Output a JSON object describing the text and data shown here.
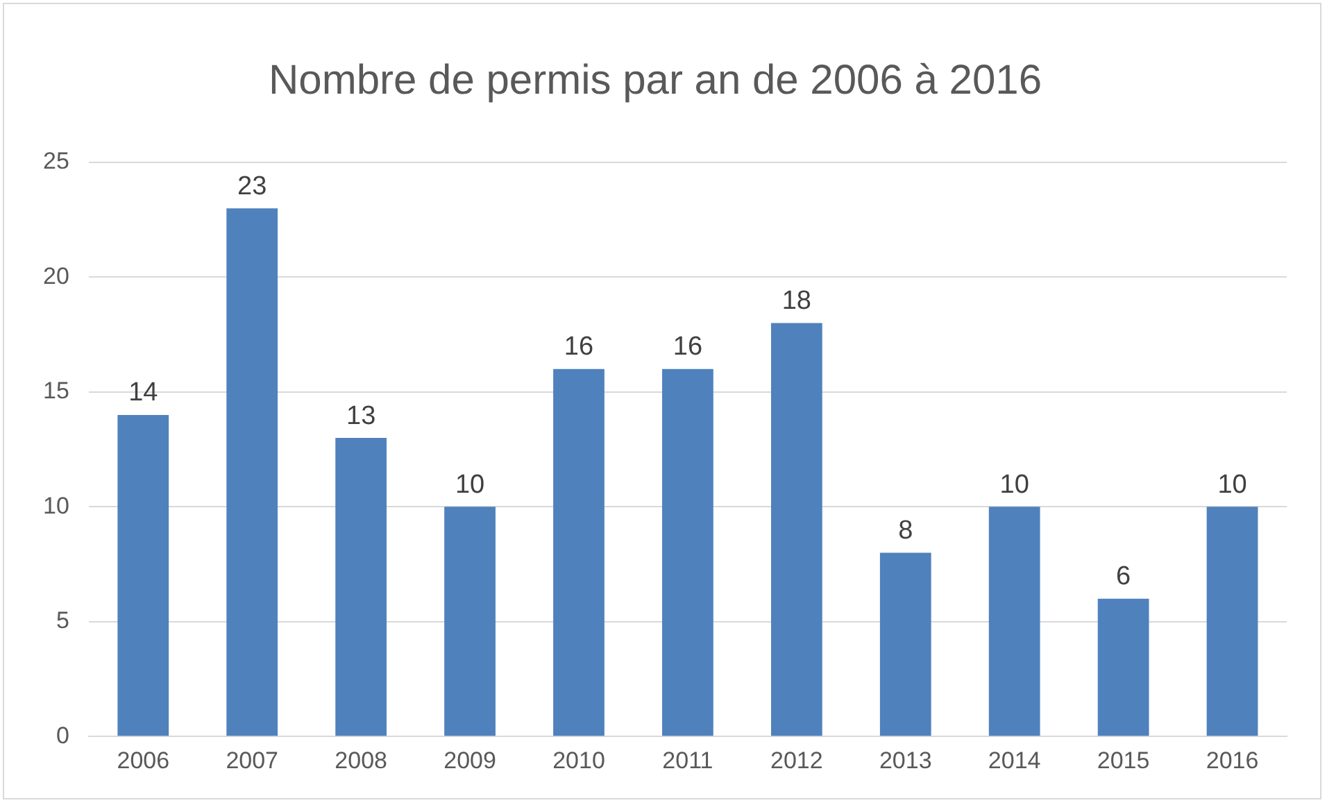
{
  "chart_data": {
    "type": "bar",
    "title": "Nombre de permis par an de 2006 à 2016",
    "categories": [
      "2006",
      "2007",
      "2008",
      "2009",
      "2010",
      "2011",
      "2012",
      "2013",
      "2014",
      "2015",
      "2016"
    ],
    "values": [
      14,
      23,
      13,
      10,
      16,
      16,
      18,
      8,
      10,
      6,
      10
    ],
    "color": "#4f81bd",
    "ylim": [
      0,
      25
    ],
    "yticks": [
      0,
      5,
      10,
      15,
      20,
      25
    ],
    "grid": "y",
    "data_labels": true
  }
}
